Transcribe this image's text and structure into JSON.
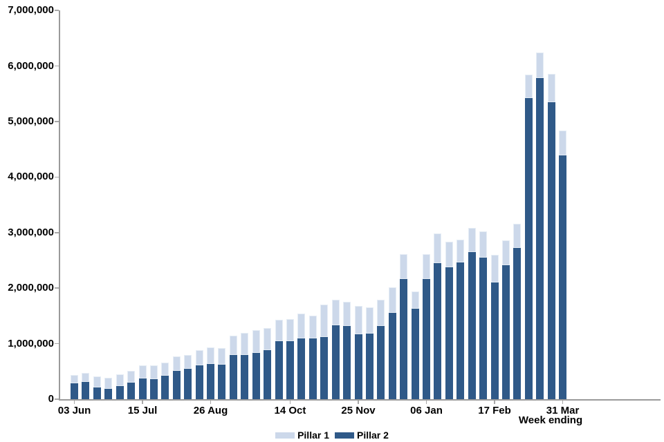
{
  "chart_data": {
    "type": "bar",
    "stacked": true,
    "title": "",
    "xlabel": "Week ending",
    "ylabel": "",
    "ylim": [
      0,
      7000000
    ],
    "grid": false,
    "legend_position": "bottom-center",
    "x": [
      1,
      2,
      3,
      4,
      5,
      6,
      7,
      8,
      9,
      10,
      11,
      12,
      13,
      14,
      15,
      16,
      17,
      18,
      19,
      20,
      21,
      22,
      23,
      24,
      25,
      26,
      27,
      28,
      29,
      30,
      31,
      32,
      33,
      34,
      35,
      36,
      37,
      38,
      39,
      40,
      41,
      42,
      43,
      44
    ],
    "x_tick_labels": [
      {
        "index": 0,
        "label": "03 Jun"
      },
      {
        "index": 6,
        "label": "15 Jul"
      },
      {
        "index": 12,
        "label": "26 Aug"
      },
      {
        "index": 19,
        "label": "14 Oct"
      },
      {
        "index": 25,
        "label": "25 Nov"
      },
      {
        "index": 31,
        "label": "06 Jan"
      },
      {
        "index": 37,
        "label": "17 Feb"
      },
      {
        "index": 43,
        "label": "31 Mar"
      }
    ],
    "y_tick_labels": [
      "0",
      "1,000,000",
      "2,000,000",
      "3,000,000",
      "4,000,000",
      "5,000,000",
      "6,000,000",
      "7,000,000"
    ],
    "series": [
      {
        "name": "Pillar 1",
        "color": "#ccd8ea",
        "values": [
          150000,
          165000,
          200000,
          190000,
          210000,
          210000,
          230000,
          250000,
          235000,
          260000,
          250000,
          270000,
          305000,
          295000,
          350000,
          400000,
          415000,
          400000,
          390000,
          395000,
          450000,
          410000,
          580000,
          465000,
          435000,
          505000,
          475000,
          465000,
          465000,
          445000,
          305000,
          445000,
          545000,
          470000,
          410000,
          435000,
          470000,
          500000,
          445000,
          435000,
          420000,
          470000,
          510000,
          450000
        ]
      },
      {
        "name": "Pillar 2",
        "color": "#2f5988",
        "values": [
          280000,
          305000,
          210000,
          190000,
          235000,
          300000,
          375000,
          365000,
          420000,
          510000,
          550000,
          615000,
          630000,
          625000,
          800000,
          790000,
          830000,
          885000,
          1040000,
          1045000,
          1090000,
          1090000,
          1120000,
          1330000,
          1315000,
          1175000,
          1185000,
          1320000,
          1550000,
          2170000,
          1635000,
          2170000,
          2445000,
          2370000,
          2465000,
          2655000,
          2550000,
          2105000,
          2410000,
          2730000,
          5420000,
          5780000,
          5350000,
          4390000
        ]
      }
    ]
  },
  "legend": {
    "pillar1_label": "Pillar 1",
    "pillar2_label": "Pillar 2"
  },
  "axis_colors": {
    "line": "#9a9a9a",
    "tick": "#a8a8a8"
  }
}
